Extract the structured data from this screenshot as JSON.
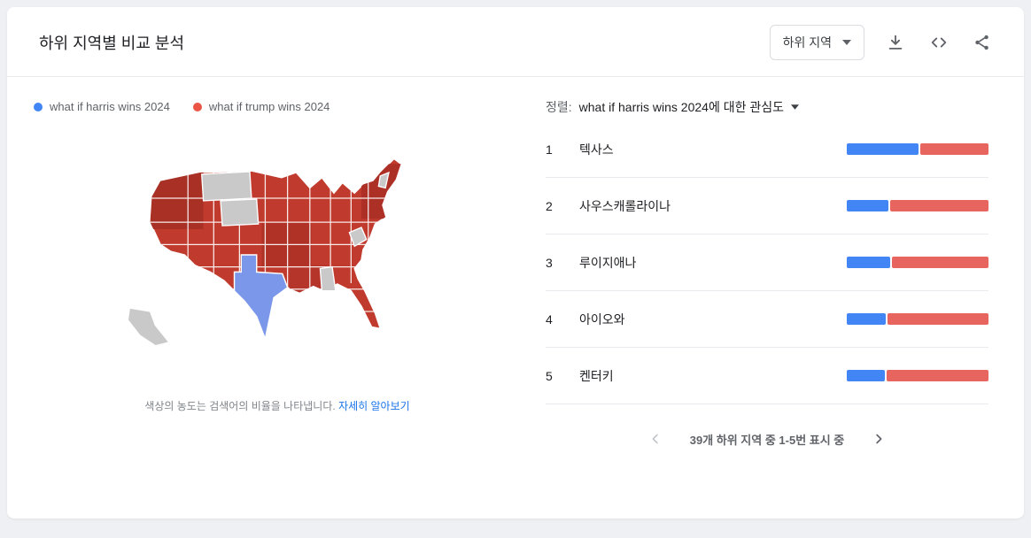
{
  "header": {
    "title": "하위 지역별 비교 분석",
    "region_dropdown": "하위 지역",
    "icons": [
      "download-icon",
      "embed-icon",
      "share-icon"
    ]
  },
  "legend": {
    "items": [
      {
        "label": "what if harris wins 2024",
        "color": "#4285f4"
      },
      {
        "label": "what if trump wins 2024",
        "color": "#ea5545"
      }
    ]
  },
  "map": {
    "footnote": "색상의 농도는 검색어의 비율을 나타냅니다.",
    "learn_more": "자세히 알아보기",
    "highlighted_state": "텍사스",
    "colors": {
      "dominant": "#c13a2e",
      "highlight": "#7b97ea",
      "no_data": "#c9c9c9"
    }
  },
  "sort": {
    "label": "정렬:",
    "value": "what if harris wins 2024에 대한 관심도"
  },
  "colors": {
    "harris": "#4285f4",
    "trump": "#e8655f"
  },
  "regions": [
    {
      "rank": "1",
      "name": "텍사스",
      "harris": 51,
      "trump": 49
    },
    {
      "rank": "2",
      "name": "사우스캐롤라이나",
      "harris": 30,
      "trump": 70
    },
    {
      "rank": "3",
      "name": "루이지애나",
      "harris": 31,
      "trump": 69
    },
    {
      "rank": "4",
      "name": "아이오와",
      "harris": 28,
      "trump": 72
    },
    {
      "rank": "5",
      "name": "켄터키",
      "harris": 27,
      "trump": 73
    }
  ],
  "pagination": {
    "text": "39개 하위 지역 중 1-5번 표시 중"
  },
  "chart_data": {
    "type": "bar",
    "subtype": "stacked-comparison-with-choropleth-map",
    "title": "하위 지역별 비교 분석",
    "categories": [
      "텍사스",
      "사우스캐롤라이나",
      "루이지애나",
      "아이오와",
      "켄터키"
    ],
    "series": [
      {
        "name": "what if harris wins 2024",
        "color": "#4285f4",
        "values": [
          51,
          30,
          31,
          28,
          27
        ]
      },
      {
        "name": "what if trump wins 2024",
        "color": "#e8655f",
        "values": [
          49,
          70,
          69,
          72,
          73
        ]
      }
    ],
    "value_unit": "percent of search interest",
    "legend_position": "top-left",
    "map_note": "US choropleth: most states red (trump term leads), Texas blue (harris term leads), several states gray (insufficient data)"
  }
}
